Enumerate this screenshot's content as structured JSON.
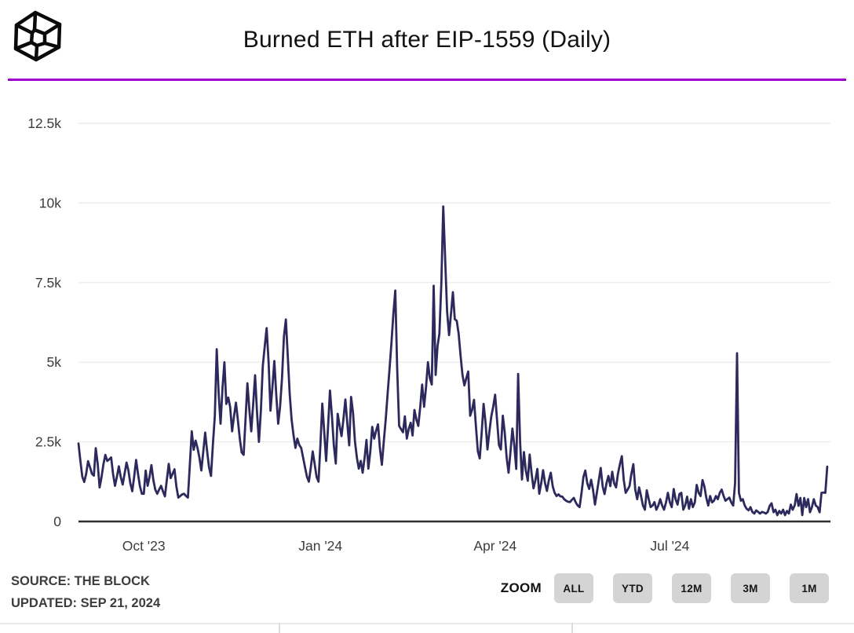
{
  "header": {
    "title": "Burned ETH after EIP-1559 (Daily)"
  },
  "colors": {
    "accent": "#a000d0",
    "line": "#2d295c",
    "grid": "#ececec",
    "axis": "#2e2e2e",
    "tick_text": "#3c3c3c",
    "button_bg": "#d4d4d4"
  },
  "footer": {
    "source_line": "SOURCE: THE BLOCK",
    "updated_line": "UPDATED: SEP 21, 2024",
    "zoom_label": "ZOOM",
    "zoom_buttons": [
      "ALL",
      "YTD",
      "12M",
      "3M",
      "1M"
    ]
  },
  "chart_data": {
    "type": "line",
    "title": "Burned ETH after EIP-1559 (Daily)",
    "legend_position": "none",
    "grid": true,
    "ylim": [
      0,
      13000
    ],
    "y_ticks": [
      {
        "label": "0",
        "value": 0
      },
      {
        "label": "2.5k",
        "value": 2500
      },
      {
        "label": "5k",
        "value": 5000
      },
      {
        "label": "7.5k",
        "value": 7500
      },
      {
        "label": "10k",
        "value": 10000
      },
      {
        "label": "12.5k",
        "value": 12500
      }
    ],
    "x_ticks": [
      {
        "label": "Oct '23",
        "day_index": 34
      },
      {
        "label": "Jan '24",
        "day_index": 126
      },
      {
        "label": "Apr '24",
        "day_index": 217
      },
      {
        "label": "Jul '24",
        "day_index": 308
      }
    ],
    "series": [
      {
        "name": "Burned ETH (daily)",
        "values": [
          2450,
          1900,
          1400,
          1240,
          1500,
          1890,
          1700,
          1500,
          1440,
          2300,
          1800,
          1070,
          1400,
          1800,
          2090,
          1900,
          1950,
          2010,
          1500,
          1120,
          1400,
          1730,
          1400,
          1160,
          1500,
          1850,
          1600,
          1200,
          950,
          1400,
          1930,
          1500,
          1100,
          870,
          870,
          1600,
          1120,
          1400,
          1770,
          1300,
          1000,
          870,
          1000,
          1120,
          950,
          790,
          1300,
          1810,
          1360,
          1500,
          1640,
          1100,
          750,
          800,
          850,
          870,
          800,
          750,
          1800,
          2830,
          2250,
          2540,
          2300,
          2000,
          1600,
          2200,
          2790,
          2200,
          1700,
          1430,
          2400,
          3320,
          5410,
          4000,
          3070,
          4200,
          5000,
          3690,
          3890,
          3600,
          2830,
          3300,
          3730,
          3200,
          2600,
          2170,
          2090,
          3200,
          4340,
          3500,
          2830,
          3700,
          4590,
          3400,
          2500,
          3500,
          4880,
          5500,
          6070,
          5000,
          3480,
          4200,
          5040,
          4000,
          3070,
          3600,
          4500,
          5800,
          6340,
          5200,
          4000,
          3200,
          2700,
          2310,
          2600,
          2400,
          2310,
          2000,
          1700,
          1400,
          1250,
          1700,
          2200,
          1800,
          1400,
          1250,
          2400,
          3700,
          2800,
          1900,
          3000,
          4110,
          3300,
          2400,
          1820,
          3380,
          3000,
          2680,
          3200,
          3830,
          3100,
          2390,
          3910,
          3400,
          2520,
          2000,
          1660,
          1900,
          1530,
          2000,
          2560,
          1660,
          2200,
          2970,
          2600,
          2840,
          3050,
          2300,
          1780,
          2500,
          3200,
          4000,
          4800,
          5600,
          6500,
          7250,
          4800,
          3000,
          2900,
          2800,
          3300,
          2600,
          2900,
          3100,
          2700,
          3500,
          3200,
          3000,
          3600,
          4300,
          3600,
          4200,
          5000,
          4500,
          4300,
          7400,
          4600,
          5500,
          5900,
          7500,
          9890,
          8200,
          6600,
          5850,
          6500,
          7200,
          6350,
          6300,
          5900,
          5200,
          4600,
          4270,
          4500,
          4710,
          3320,
          3500,
          3820,
          3000,
          2200,
          1980,
          2800,
          3690,
          3100,
          2260,
          2800,
          3300,
          3600,
          3980,
          3200,
          2400,
          2260,
          3320,
          2800,
          2000,
          1530,
          2200,
          2920,
          2400,
          1650,
          4630,
          2500,
          1320,
          2180,
          1600,
          1280,
          2100,
          1500,
          1040,
          1300,
          1650,
          870,
          1200,
          1610,
          1200,
          960,
          1300,
          1530,
          1100,
          900,
          800,
          850,
          790,
          780,
          700,
          650,
          620,
          610,
          680,
          740,
          600,
          500,
          450,
          900,
          1400,
          1600,
          1200,
          1020,
          1310,
          1000,
          530,
          900,
          1300,
          1680,
          1100,
          860,
          1200,
          1430,
          1110,
          1560,
          1200,
          1070,
          1500,
          1800,
          2050,
          1300,
          900,
          1000,
          1110,
          1500,
          1800,
          1000,
          700,
          1070,
          800,
          500,
          370,
          980,
          700,
          450,
          500,
          610,
          370,
          500,
          700,
          500,
          370,
          600,
          900,
          600,
          450,
          1020,
          700,
          530,
          860,
          900,
          370,
          500,
          780,
          400,
          700,
          450,
          600,
          1150,
          900,
          800,
          1300,
          1100,
          750,
          500,
          800,
          600,
          650,
          800,
          700,
          900,
          1000,
          800,
          650,
          700,
          750,
          600,
          500,
          1200,
          5280,
          900,
          650,
          700,
          500,
          400,
          350,
          450,
          300,
          250,
          350,
          300,
          250,
          300,
          280,
          250,
          300,
          490,
          570,
          290,
          370,
          200,
          330,
          250,
          370,
          200,
          330,
          250,
          530,
          370,
          500,
          860,
          490,
          740,
          200,
          740,
          450,
          700,
          290,
          450,
          700,
          500,
          450,
          290,
          900,
          910,
          900,
          1720
        ]
      }
    ]
  }
}
